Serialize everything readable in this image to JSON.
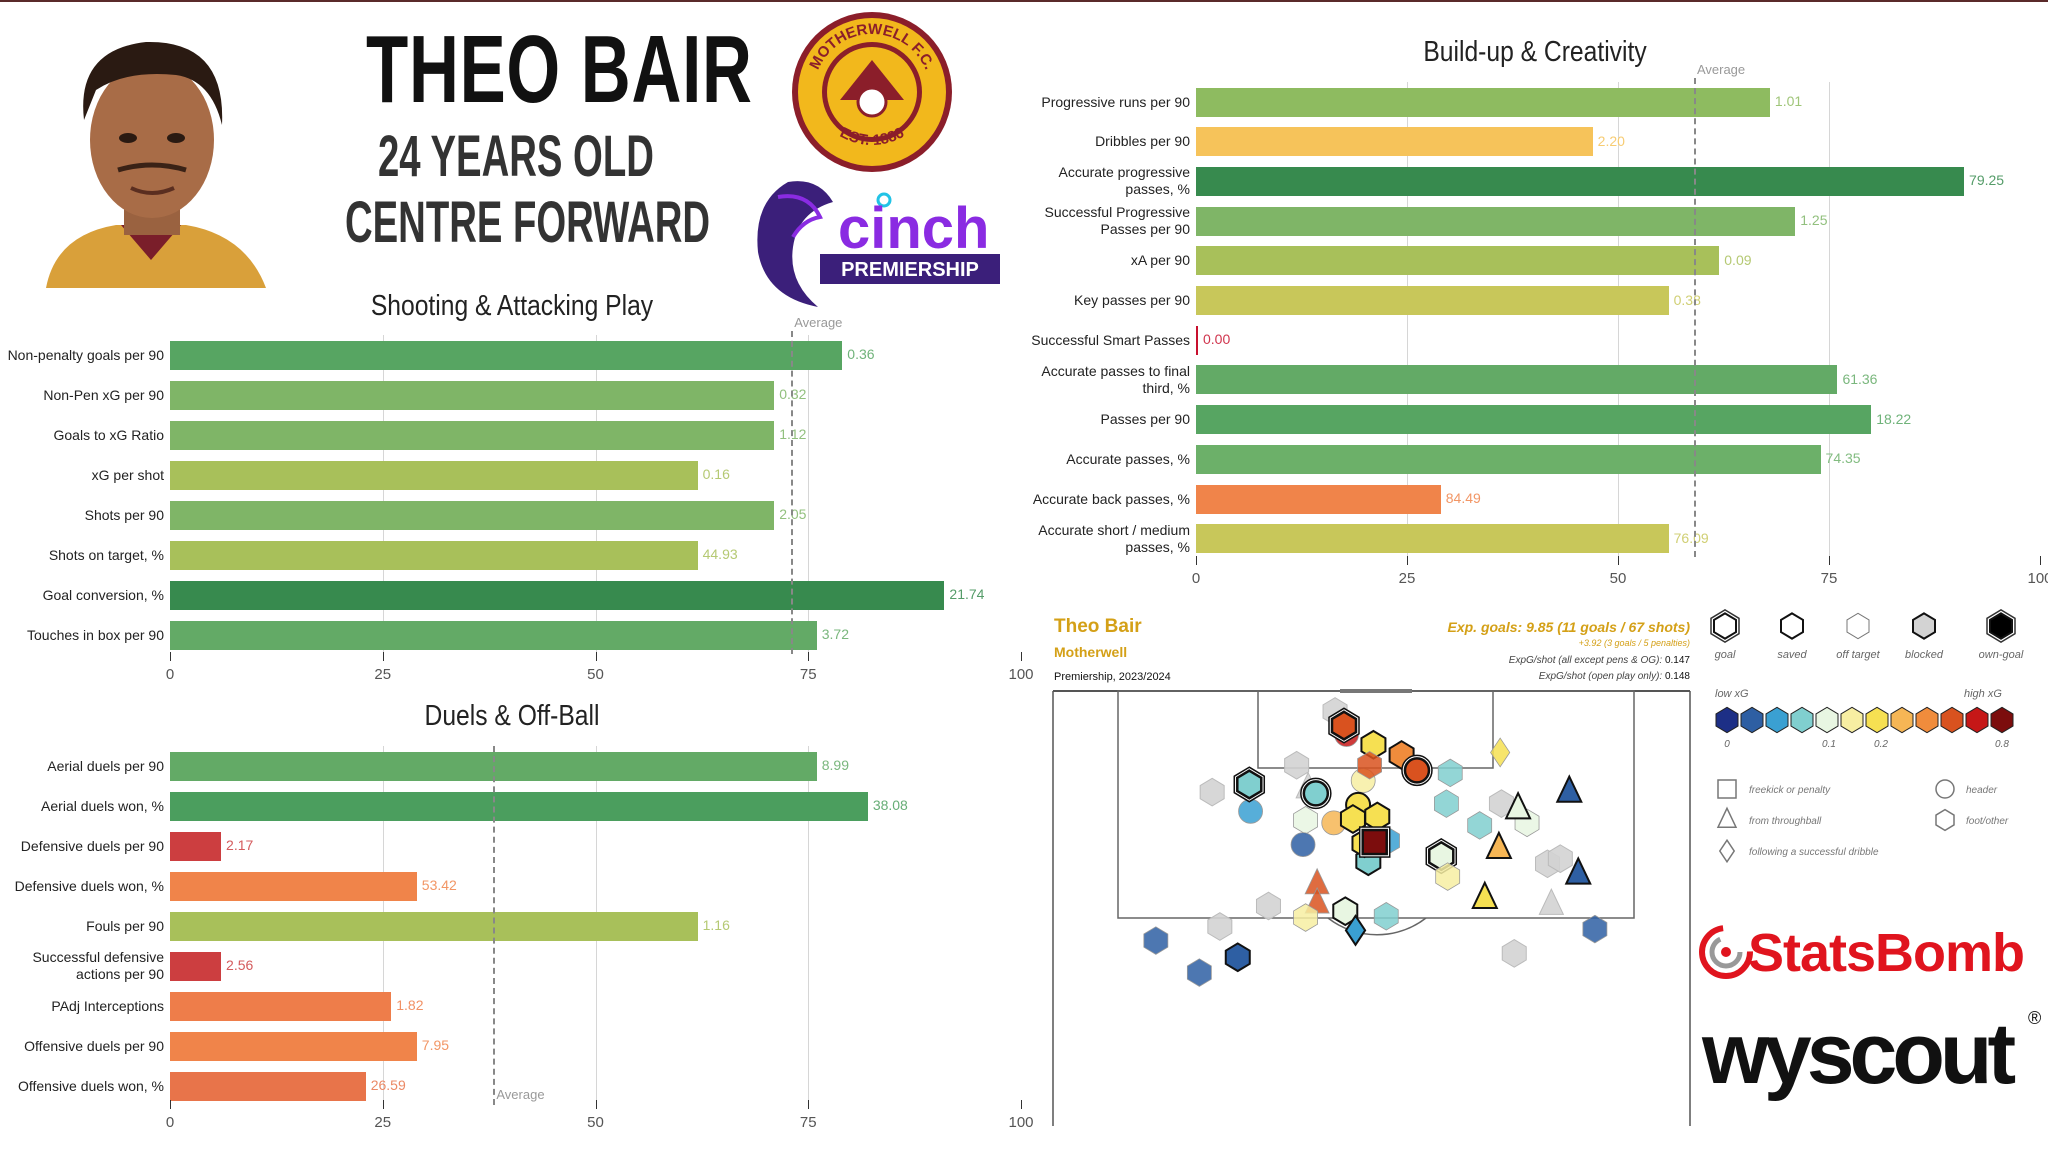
{
  "header": {
    "player_name": "THEO BAIR",
    "age": "24 YEARS OLD",
    "position": "CENTRE FORWARD"
  },
  "club_badge": {
    "text_top": "MOTHERWELL F.C.",
    "text_bottom": "EST. 1886",
    "colors": {
      "gold": "#f2b81c",
      "claret": "#8b1e2a"
    }
  },
  "league_logo": {
    "wordmark": "cinch",
    "banner": "PREMIERSHIP",
    "colors": {
      "purple": "#3b1f7a",
      "magenta": "#8a2be2"
    }
  },
  "colors": {
    "dark_green": "#378a4e",
    "green": "#63aa66",
    "light_green": "#a8c05a",
    "yellow": "#f6c35a",
    "orange": "#f0844a",
    "red": "#cc3e40"
  },
  "chart_data": [
    {
      "type": "bar",
      "orientation": "horizontal",
      "title": "Shooting & Attacking Play",
      "xlim": [
        0,
        100
      ],
      "xticks": [
        "0",
        "25",
        "50",
        "75",
        "100"
      ],
      "grid": true,
      "average": {
        "label": "Average",
        "value": 73
      },
      "categories": [
        "Non-penalty goals per 90",
        "Non-Pen xG per 90",
        "Goals to xG Ratio",
        "xG per shot",
        "Shots per 90",
        "Shots on target, %",
        "Goal conversion, %",
        "Touches in box per 90"
      ],
      "values": [
        79,
        71,
        71,
        62,
        71,
        62,
        91,
        76
      ],
      "labels": [
        "0.36",
        "0.32",
        "1.12",
        "0.16",
        "2.05",
        "44.93",
        "21.74",
        "3.72"
      ],
      "colors": [
        "#57a562",
        "#7fb567",
        "#7fb567",
        "#a8c05a",
        "#7fb567",
        "#a8c05a",
        "#378a4e",
        "#63aa66"
      ]
    },
    {
      "type": "bar",
      "orientation": "horizontal",
      "title": "Duels & Off-Ball",
      "xlim": [
        0,
        100
      ],
      "xticks": [
        "0",
        "25",
        "50",
        "75",
        "100"
      ],
      "grid": true,
      "average": {
        "label": "Average",
        "value": 38
      },
      "categories": [
        "Aerial duels per 90",
        "Aerial duels won, %",
        "Defensive duels per 90",
        "Defensive duels won, %",
        "Fouls per 90",
        "Successful defensive actions per 90",
        "PAdj Interceptions",
        "Offensive duels per 90",
        "Offensive duels won, %"
      ],
      "values": [
        76,
        82,
        6,
        29,
        62,
        6,
        26,
        29,
        23
      ],
      "labels": [
        "8.99",
        "38.08",
        "2.17",
        "53.42",
        "1.16",
        "2.56",
        "1.82",
        "7.95",
        "26.59"
      ],
      "colors": [
        "#63aa66",
        "#4b9e5e",
        "#cc3e40",
        "#f0844a",
        "#a8c05a",
        "#cc3e40",
        "#ee7d4a",
        "#f0844a",
        "#e8744a"
      ]
    },
    {
      "type": "bar",
      "orientation": "horizontal",
      "title": "Build-up & Creativity",
      "xlim": [
        0,
        100
      ],
      "xticks": [
        "0",
        "25",
        "50",
        "75",
        "100"
      ],
      "grid": true,
      "average": {
        "label": "Average",
        "value": 59
      },
      "categories": [
        "Progressive runs per 90",
        "Dribbles per 90",
        "Accurate progressive passes, %",
        "Successful Progressive Passes per 90",
        "xA per 90",
        "Key passes per 90",
        "Successful Smart Passes",
        "Accurate passes to final third, %",
        "Passes per 90",
        "Accurate passes, %",
        "Accurate back passes, %",
        "Accurate short / medium passes, %"
      ],
      "values": [
        68,
        47,
        91,
        71,
        62,
        56,
        0,
        76,
        80,
        74,
        29,
        56
      ],
      "labels": [
        "1.01",
        "2.20",
        "79.25",
        "1.25",
        "0.09",
        "0.38",
        "0.00",
        "61.36",
        "18.22",
        "74.35",
        "84.49",
        "76.09"
      ],
      "colors": [
        "#8ebb60",
        "#f6c35a",
        "#378a4e",
        "#7fb567",
        "#a8c05a",
        "#c8c75a",
        "#c8102e",
        "#63aa66",
        "#57a562",
        "#6cb069",
        "#f0844a",
        "#c8c75a"
      ]
    },
    {
      "type": "scatter",
      "subtype": "shot-map",
      "player": "Theo Bair",
      "team": "Motherwell",
      "competition": "Premiership, 2023/2024",
      "summary": "Exp. goals: 9.85 (11 goals / 67 shots)",
      "penalties": "+3.92 (3 goals / 5 penalties)",
      "xg_per_shot_label": "ExpG/shot (all except pens & OG): ",
      "xg_per_shot": "0.147",
      "xg_open_play_label": "ExpG/shot (open play only): ",
      "xg_open_play": "0.148",
      "units": "metres (x across pitch, y from goal line)",
      "xg_scale": {
        "low_label": "low xG",
        "high_label": "high xG",
        "colors": [
          "#1d2f86",
          "#2e5fa3",
          "#3aa0d2",
          "#80cfcf",
          "#e8f6e2",
          "#f7eea2",
          "#f6e052",
          "#f6b655",
          "#f08c3c",
          "#d9521f",
          "#c61717",
          "#7c0d0d"
        ],
        "tick_labels": [
          "0",
          "0.1",
          "0.2",
          "0.8"
        ]
      },
      "outcome_legend": [
        "goal",
        "saved",
        "off target",
        "blocked",
        "own-goal"
      ],
      "type_legend": [
        "freekick or penalty",
        "from throughball",
        "following a successful dribble",
        "header",
        "foot/other"
      ],
      "shots": [
        {
          "x": 30.8,
          "y": 1.6,
          "bin": -1,
          "shape": "hex",
          "outcome": "blocked"
        },
        {
          "x": 31.7,
          "y": 3.4,
          "bin": 10,
          "shape": "circle",
          "outcome": "off target"
        },
        {
          "x": 31.5,
          "y": 2.7,
          "bin": 9,
          "shape": "hex",
          "outcome": "goal"
        },
        {
          "x": 33.8,
          "y": 4.2,
          "bin": 6,
          "shape": "hex",
          "outcome": "saved"
        },
        {
          "x": 36.0,
          "y": 5.0,
          "bin": 8,
          "shape": "hex",
          "outcome": "saved"
        },
        {
          "x": 37.2,
          "y": 6.2,
          "bin": 9,
          "shape": "circle",
          "outcome": "goal"
        },
        {
          "x": 43.7,
          "y": 4.8,
          "bin": 6,
          "shape": "diamond",
          "outcome": "off target"
        },
        {
          "x": 27.8,
          "y": 5.8,
          "bin": -1,
          "shape": "hex",
          "outcome": "blocked"
        },
        {
          "x": 21.2,
          "y": 7.9,
          "bin": -1,
          "shape": "hex",
          "outcome": "blocked"
        },
        {
          "x": 24.2,
          "y": 9.4,
          "bin": 2,
          "shape": "circle",
          "outcome": "off target"
        },
        {
          "x": 24.1,
          "y": 7.3,
          "bin": 3,
          "shape": "hex",
          "outcome": "goal"
        },
        {
          "x": 28.7,
          "y": 7.6,
          "bin": -1,
          "shape": "triangle",
          "outcome": "blocked"
        },
        {
          "x": 33.0,
          "y": 7.0,
          "bin": 5,
          "shape": "circle",
          "outcome": "off target"
        },
        {
          "x": 33.5,
          "y": 5.8,
          "bin": 9,
          "shape": "hex",
          "outcome": "off target"
        },
        {
          "x": 29.3,
          "y": 8.0,
          "bin": 3,
          "shape": "circle",
          "outcome": "goal"
        },
        {
          "x": 39.8,
          "y": 6.4,
          "bin": 3,
          "shape": "hex",
          "outcome": "off target"
        },
        {
          "x": 30.7,
          "y": 10.3,
          "bin": 7,
          "shape": "circle",
          "outcome": "off target"
        },
        {
          "x": 28.5,
          "y": 10.1,
          "bin": 4,
          "shape": "hex",
          "outcome": "off target"
        },
        {
          "x": 32.6,
          "y": 8.9,
          "bin": 6,
          "shape": "circle",
          "outcome": "saved"
        },
        {
          "x": 34.1,
          "y": 9.8,
          "bin": 6,
          "shape": "hex",
          "outcome": "saved"
        },
        {
          "x": 32.2,
          "y": 10.0,
          "bin": 6,
          "shape": "hex",
          "outcome": "saved"
        },
        {
          "x": 28.3,
          "y": 12.0,
          "bin": 1,
          "shape": "circle",
          "outcome": "off target"
        },
        {
          "x": 34.9,
          "y": 11.7,
          "bin": 2,
          "shape": "hex",
          "outcome": "off target"
        },
        {
          "x": 33.4,
          "y": 13.3,
          "bin": 3,
          "shape": "hex",
          "outcome": "saved"
        },
        {
          "x": 33.1,
          "y": 11.9,
          "bin": 6,
          "shape": "hex",
          "outcome": "saved"
        },
        {
          "x": 33.9,
          "y": 11.8,
          "bin": 11,
          "shape": "square",
          "outcome": "goal"
        },
        {
          "x": 39.5,
          "y": 8.8,
          "bin": 3,
          "shape": "hex",
          "outcome": "off target"
        },
        {
          "x": 42.1,
          "y": 10.5,
          "bin": 3,
          "shape": "hex",
          "outcome": "off target"
        },
        {
          "x": 43.8,
          "y": 8.8,
          "bin": -1,
          "shape": "hex",
          "outcome": "blocked"
        },
        {
          "x": 45.8,
          "y": 10.3,
          "bin": 4,
          "shape": "hex",
          "outcome": "off target"
        },
        {
          "x": 45.1,
          "y": 9.2,
          "bin": 4,
          "shape": "triangle",
          "outcome": "saved"
        },
        {
          "x": 49.1,
          "y": 7.9,
          "bin": 1,
          "shape": "triangle",
          "outcome": "saved"
        },
        {
          "x": 39.1,
          "y": 12.9,
          "bin": 4,
          "shape": "hex",
          "outcome": "goal"
        },
        {
          "x": 39.6,
          "y": 14.5,
          "bin": 5,
          "shape": "hex",
          "outcome": "off target"
        },
        {
          "x": 43.6,
          "y": 12.3,
          "bin": 7,
          "shape": "triangle",
          "outcome": "saved"
        },
        {
          "x": 42.5,
          "y": 16.2,
          "bin": 6,
          "shape": "triangle",
          "outcome": "saved"
        },
        {
          "x": 47.4,
          "y": 13.5,
          "bin": -1,
          "shape": "hex",
          "outcome": "blocked"
        },
        {
          "x": 48.4,
          "y": 13.1,
          "bin": -1,
          "shape": "hex",
          "outcome": "blocked"
        },
        {
          "x": 49.8,
          "y": 14.3,
          "bin": 1,
          "shape": "triangle",
          "outcome": "saved"
        },
        {
          "x": 29.4,
          "y": 15.1,
          "bin": 9,
          "shape": "triangle",
          "outcome": "off target"
        },
        {
          "x": 29.4,
          "y": 16.6,
          "bin": 9,
          "shape": "triangle",
          "outcome": "off target"
        },
        {
          "x": 25.6,
          "y": 16.8,
          "bin": -1,
          "shape": "hex",
          "outcome": "blocked"
        },
        {
          "x": 28.5,
          "y": 17.7,
          "bin": 5,
          "shape": "hex",
          "outcome": "off target"
        },
        {
          "x": 31.6,
          "y": 17.2,
          "bin": 4,
          "shape": "hex",
          "outcome": "saved"
        },
        {
          "x": 32.4,
          "y": 18.7,
          "bin": 2,
          "shape": "diamond",
          "outcome": "saved"
        },
        {
          "x": 34.8,
          "y": 17.6,
          "bin": 3,
          "shape": "hex",
          "outcome": "off target"
        },
        {
          "x": 47.7,
          "y": 16.7,
          "bin": -1,
          "shape": "triangle",
          "outcome": "blocked"
        },
        {
          "x": 16.8,
          "y": 19.5,
          "bin": 1,
          "shape": "hex",
          "outcome": "off target"
        },
        {
          "x": 21.8,
          "y": 18.4,
          "bin": -1,
          "shape": "hex",
          "outcome": "blocked"
        },
        {
          "x": 20.2,
          "y": 22.0,
          "bin": 1,
          "shape": "hex",
          "outcome": "off target"
        },
        {
          "x": 23.2,
          "y": 20.8,
          "bin": 1,
          "shape": "hex",
          "outcome": "saved"
        },
        {
          "x": 44.8,
          "y": 20.5,
          "bin": -1,
          "shape": "hex",
          "outcome": "blocked"
        },
        {
          "x": 51.1,
          "y": 18.6,
          "bin": 1,
          "shape": "hex",
          "outcome": "off target"
        }
      ]
    }
  ],
  "sponsors": {
    "statsbomb": "StatsBomb",
    "wyscout": "wyscout",
    "registered": "®"
  }
}
